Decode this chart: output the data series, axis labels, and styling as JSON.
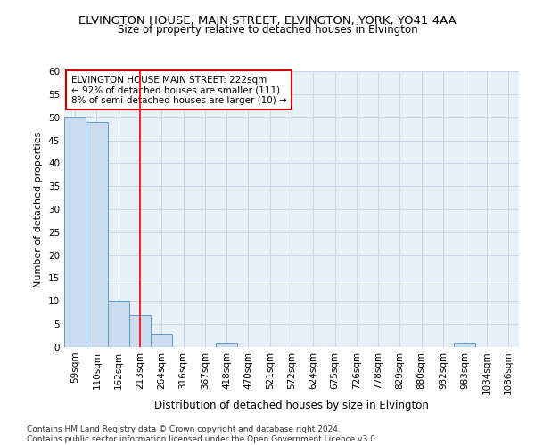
{
  "title": "ELVINGTON HOUSE, MAIN STREET, ELVINGTON, YORK, YO41 4AA",
  "subtitle": "Size of property relative to detached houses in Elvington",
  "xlabel": "Distribution of detached houses by size in Elvington",
  "ylabel": "Number of detached properties",
  "footer_line1": "Contains HM Land Registry data © Crown copyright and database right 2024.",
  "footer_line2": "Contains public sector information licensed under the Open Government Licence v3.0.",
  "categories": [
    "59sqm",
    "110sqm",
    "162sqm",
    "213sqm",
    "264sqm",
    "316sqm",
    "367sqm",
    "418sqm",
    "470sqm",
    "521sqm",
    "572sqm",
    "624sqm",
    "675sqm",
    "726sqm",
    "778sqm",
    "829sqm",
    "880sqm",
    "932sqm",
    "983sqm",
    "1034sqm",
    "1086sqm"
  ],
  "values": [
    50,
    49,
    10,
    7,
    3,
    0,
    0,
    1,
    0,
    0,
    0,
    0,
    0,
    0,
    0,
    0,
    0,
    0,
    1,
    0,
    0
  ],
  "bar_color": "#ccdcf0",
  "bar_edge_color": "#5b9bd5",
  "red_line_x": 3.0,
  "ylim": [
    0,
    60
  ],
  "yticks": [
    0,
    5,
    10,
    15,
    20,
    25,
    30,
    35,
    40,
    45,
    50,
    55,
    60
  ],
  "annotation_text": "ELVINGTON HOUSE MAIN STREET: 222sqm\n← 92% of detached houses are smaller (111)\n8% of semi-detached houses are larger (10) →",
  "annotation_box_color": "#ffffff",
  "annotation_box_edge": "#cc0000",
  "grid_color": "#c8d8e8",
  "bg_color": "#e8f0f8",
  "title_fontsize": 9.5,
  "subtitle_fontsize": 8.5,
  "ylabel_fontsize": 8,
  "xlabel_fontsize": 8.5,
  "tick_fontsize": 7.5,
  "annot_fontsize": 7.5,
  "footer_fontsize": 6.5
}
